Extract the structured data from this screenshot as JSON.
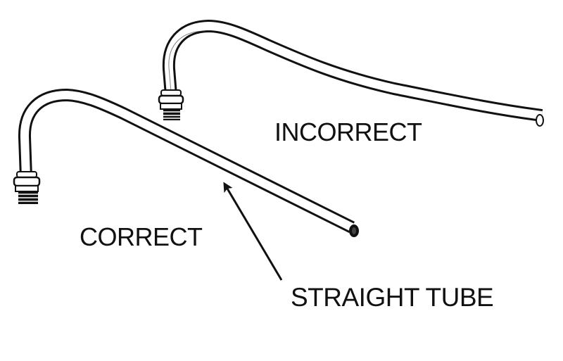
{
  "diagram": {
    "labels": {
      "incorrect": "INCORRECT",
      "correct": "CORRECT",
      "straight_tube": "STRAIGHT TUBE"
    },
    "colors": {
      "ink": "#111111",
      "background": "#ffffff"
    }
  }
}
